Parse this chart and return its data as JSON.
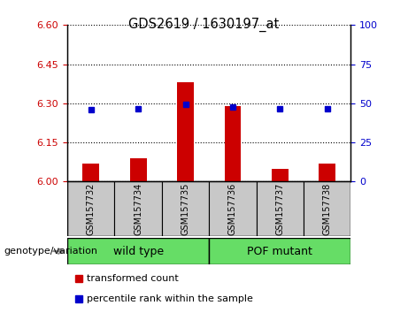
{
  "title": "GDS2619 / 1630197_at",
  "samples": [
    "GSM157732",
    "GSM157734",
    "GSM157735",
    "GSM157736",
    "GSM157737",
    "GSM157738"
  ],
  "red_values": [
    6.07,
    6.09,
    6.38,
    6.29,
    6.05,
    6.07
  ],
  "blue_values": [
    6.275,
    6.28,
    6.295,
    6.285,
    6.28,
    6.28
  ],
  "ylim_left": [
    6.0,
    6.6
  ],
  "yticks_left": [
    6.0,
    6.15,
    6.3,
    6.45,
    6.6
  ],
  "yticks_right": [
    0,
    25,
    50,
    75,
    100
  ],
  "ylim_right": [
    0,
    100
  ],
  "bar_bottom": 6.0,
  "group_label": "genotype/variation",
  "legend_red": "transformed count",
  "legend_blue": "percentile rank within the sample",
  "red_color": "#CC0000",
  "blue_color": "#0000CC",
  "bar_width": 0.35,
  "left_tick_color": "#CC0000",
  "right_tick_color": "#0000CC",
  "bg_plot": "white",
  "bg_xtick": "#C8C8C8",
  "green_color": "#66DD66",
  "wt_label": "wild type",
  "pof_label": "POF mutant"
}
